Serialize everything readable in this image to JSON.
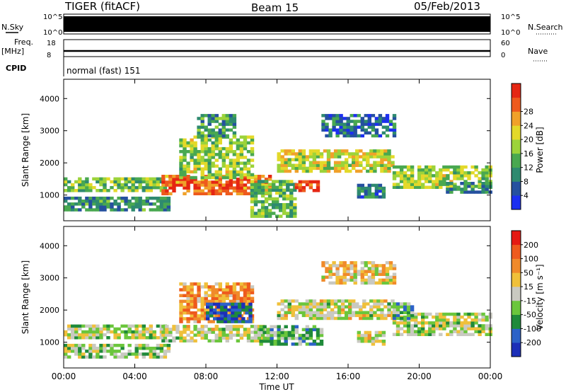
{
  "header": {
    "station": "TIGER (fitACF)",
    "beam": "Beam 15",
    "date": "05/Feb/2013"
  },
  "strips": {
    "nsky_label": "N.Sky",
    "nsky_ticks": [
      "10^5",
      "10^0"
    ],
    "nsearch_label": "N.Search",
    "nsearch_ticks": [
      "10^5",
      "10^0"
    ],
    "freq_label": "Freq.",
    "freq_unit": "[MHz]",
    "freq_ticks": [
      "18",
      "8"
    ],
    "nave_label": "Nave",
    "nave_ticks": [
      "60",
      "0"
    ],
    "cpid_label": "CPID",
    "cpid_value": "normal (fast) 151"
  },
  "chart_data": [
    {
      "type": "heatmap",
      "title": "",
      "ylabel": "Slant Range [km]",
      "xlabel": "",
      "ylim": [
        200,
        4600
      ],
      "yticks": [
        "1000",
        "2000",
        "3000",
        "4000"
      ],
      "xticks": [
        "00:00",
        "04:00",
        "08:00",
        "12:00",
        "16:00",
        "20:00",
        "00:00"
      ],
      "xrange_hours": [
        0,
        24
      ],
      "colorbar": {
        "label": "Power [dB]",
        "ticks": [
          "4",
          "8",
          "12",
          "16",
          "20",
          "24",
          "28"
        ],
        "colors": [
          "#1c2ff0",
          "#25509f",
          "#2e8a6f",
          "#49a850",
          "#9cd33a",
          "#e3d92a",
          "#f0a12a",
          "#ee5a1d",
          "#e52613"
        ]
      },
      "bands": [
        {
          "t0": 0.0,
          "t1": 5.8,
          "r0": 1100,
          "r1": 1550,
          "level": 0.45
        },
        {
          "t0": 0.0,
          "t1": 6.0,
          "r0": 500,
          "r1": 900,
          "level": 0.3
        },
        {
          "t0": 5.5,
          "t1": 11.5,
          "r0": 1000,
          "r1": 1550,
          "level": 0.82
        },
        {
          "t0": 6.5,
          "t1": 10.5,
          "r0": 1500,
          "r1": 2800,
          "level": 0.5
        },
        {
          "t0": 7.5,
          "t1": 9.5,
          "r0": 2800,
          "r1": 3500,
          "level": 0.35
        },
        {
          "t0": 10.5,
          "t1": 13.0,
          "r0": 300,
          "r1": 1400,
          "level": 0.4
        },
        {
          "t0": 13.0,
          "t1": 14.2,
          "r0": 1100,
          "r1": 1400,
          "level": 0.9
        },
        {
          "t0": 12.0,
          "t1": 18.5,
          "r0": 1700,
          "r1": 2400,
          "level": 0.58
        },
        {
          "t0": 14.5,
          "t1": 18.5,
          "r0": 2800,
          "r1": 3500,
          "level": 0.22
        },
        {
          "t0": 16.5,
          "t1": 18.0,
          "r0": 900,
          "r1": 1300,
          "level": 0.25
        },
        {
          "t0": 18.5,
          "t1": 24.0,
          "r0": 1200,
          "r1": 1900,
          "level": 0.5
        },
        {
          "t0": 21.5,
          "t1": 24.0,
          "r0": 1050,
          "r1": 1400,
          "level": 0.3
        }
      ]
    },
    {
      "type": "heatmap",
      "title": "",
      "ylabel": "Slant Range [km]",
      "xlabel": "Time UT",
      "ylim": [
        200,
        4600
      ],
      "yticks": [
        "1000",
        "2000",
        "3000",
        "4000"
      ],
      "xticks": [
        "00:00",
        "04:00",
        "08:00",
        "12:00",
        "16:00",
        "20:00",
        "00:00"
      ],
      "xrange_hours": [
        0,
        24
      ],
      "colorbar": {
        "label": "Velocity [m s⁻¹]",
        "ticks": [
          "200",
          "100",
          "50",
          "15",
          "-15",
          "-50",
          "-100",
          "-200"
        ],
        "colors": [
          "#1c2fb8",
          "#2c62c8",
          "#1f8a3a",
          "#6bc63c",
          "#c9c9c1",
          "#f0c03a",
          "#f08a2a",
          "#ee5a1d",
          "#e51a13"
        ]
      },
      "bands": [
        {
          "t0": 0.0,
          "t1": 5.8,
          "r0": 1100,
          "r1": 1500,
          "level": 0.47
        },
        {
          "t0": 0.0,
          "t1": 6.0,
          "r0": 500,
          "r1": 900,
          "level": 0.45
        },
        {
          "t0": 5.5,
          "t1": 11.5,
          "r0": 1000,
          "r1": 1500,
          "level": 0.5
        },
        {
          "t0": 6.5,
          "t1": 10.5,
          "r0": 1600,
          "r1": 2800,
          "level": 0.7
        },
        {
          "t0": 8.0,
          "t1": 10.5,
          "r0": 1600,
          "r1": 2200,
          "level": 0.15
        },
        {
          "t0": 11.0,
          "t1": 14.5,
          "r0": 900,
          "r1": 1500,
          "level": 0.33
        },
        {
          "t0": 12.0,
          "t1": 18.5,
          "r0": 1700,
          "r1": 2300,
          "level": 0.5
        },
        {
          "t0": 14.5,
          "t1": 18.5,
          "r0": 2800,
          "r1": 3500,
          "level": 0.6
        },
        {
          "t0": 16.5,
          "t1": 18.0,
          "r0": 900,
          "r1": 1300,
          "level": 0.5
        },
        {
          "t0": 18.5,
          "t1": 24.0,
          "r0": 1200,
          "r1": 1900,
          "level": 0.48
        },
        {
          "t0": 18.5,
          "t1": 19.5,
          "r0": 1700,
          "r1": 2200,
          "level": 0.33
        }
      ]
    }
  ]
}
